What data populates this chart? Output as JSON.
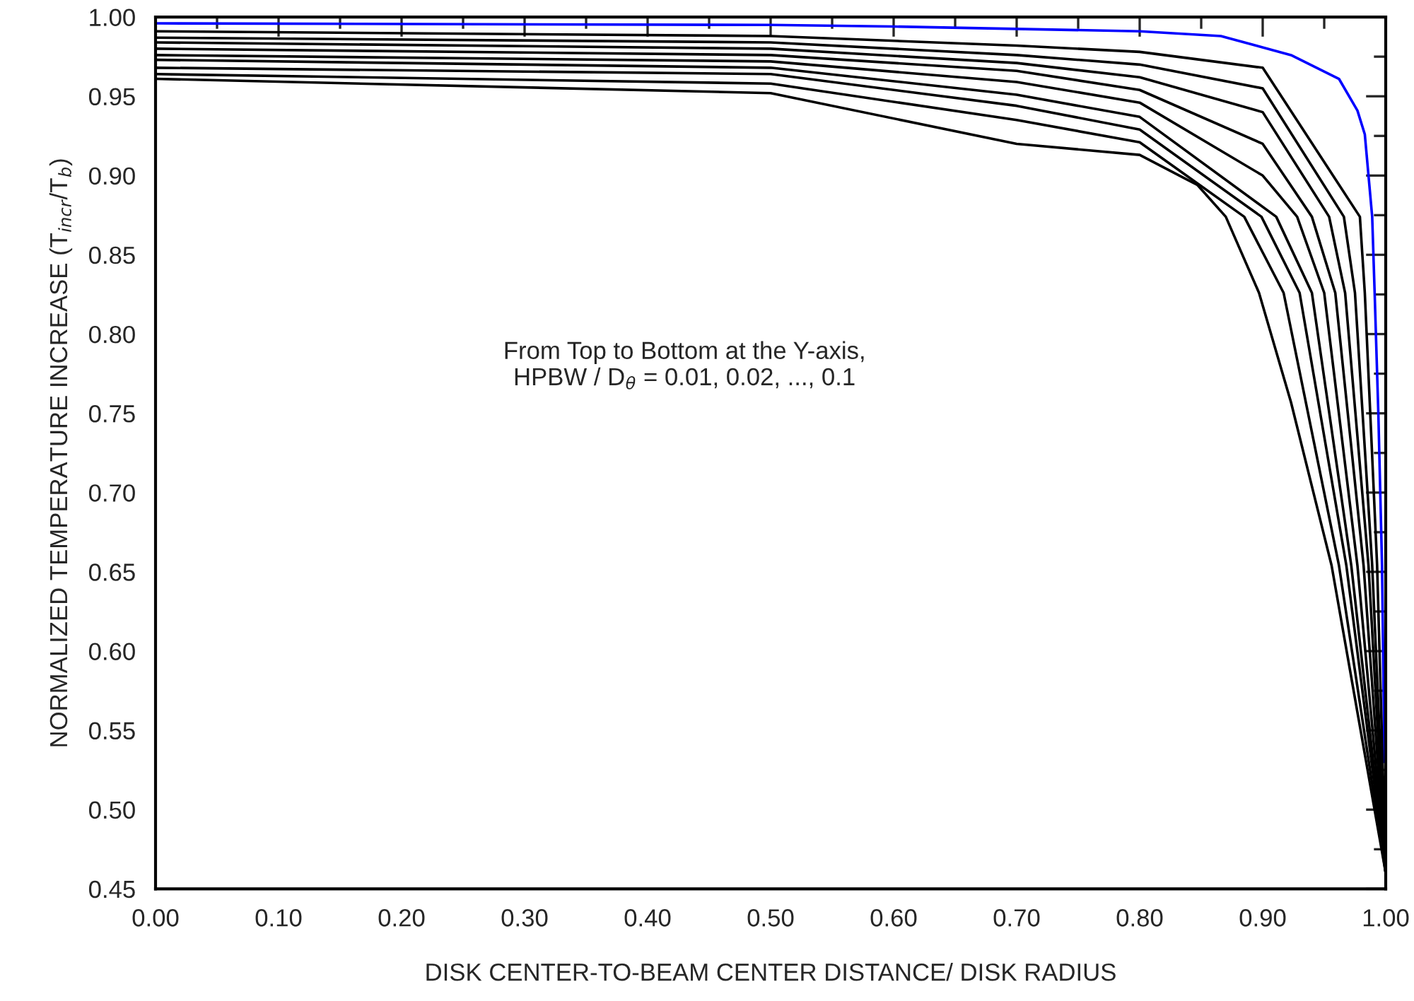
{
  "chart_data": {
    "type": "line",
    "xlabel": "DISK CENTER-TO-BEAM CENTER DISTANCE/ DISK RADIUS",
    "ylabel": "NORMALIZED TEMPERATURE INCREASE (T$_{incr}$/T$_{b}$)",
    "annotations": [
      "From Top to Bottom at the Y-axis,\nHPBW / D$_{θ}$ = 0.01, 0.02, ..., 0.1"
    ],
    "xlim": [
      0,
      1
    ],
    "ylim": [
      0.45,
      1.0
    ],
    "xticks": [
      {
        "value": 0,
        "label": "0.00"
      },
      {
        "value": 0.05,
        "label": null
      },
      {
        "value": 0.1,
        "label": "0.10"
      },
      {
        "value": 0.15,
        "label": null
      },
      {
        "value": 0.2,
        "label": "0.20"
      },
      {
        "value": 0.25,
        "label": null
      },
      {
        "value": 0.3,
        "label": "0.30"
      },
      {
        "value": 0.35,
        "label": null
      },
      {
        "value": 0.4,
        "label": "0.40"
      },
      {
        "value": 0.45,
        "label": null
      },
      {
        "value": 0.5,
        "label": "0.50"
      },
      {
        "value": 0.55,
        "label": null
      },
      {
        "value": 0.6,
        "label": "0.60"
      },
      {
        "value": 0.65,
        "label": null
      },
      {
        "value": 0.7,
        "label": "0.70"
      },
      {
        "value": 0.75,
        "label": null
      },
      {
        "value": 0.8,
        "label": "0.80"
      },
      {
        "value": 0.85,
        "label": null
      },
      {
        "value": 0.9,
        "label": "0.90"
      },
      {
        "value": 0.95,
        "label": null
      },
      {
        "value": 1.0,
        "label": "1.00"
      }
    ],
    "yticks": [
      {
        "value": 0.45,
        "label": "0.45"
      },
      {
        "value": 0.475,
        "label": null
      },
      {
        "value": 0.5,
        "label": "0.50"
      },
      {
        "value": 0.525,
        "label": null
      },
      {
        "value": 0.55,
        "label": "0.55"
      },
      {
        "value": 0.575,
        "label": null
      },
      {
        "value": 0.6,
        "label": "0.60"
      },
      {
        "value": 0.625,
        "label": null
      },
      {
        "value": 0.65,
        "label": "0.65"
      },
      {
        "value": 0.675,
        "label": null
      },
      {
        "value": 0.7,
        "label": "0.70"
      },
      {
        "value": 0.725,
        "label": null
      },
      {
        "value": 0.75,
        "label": "0.75"
      },
      {
        "value": 0.775,
        "label": null
      },
      {
        "value": 0.8,
        "label": "0.80"
      },
      {
        "value": 0.825,
        "label": null
      },
      {
        "value": 0.85,
        "label": "0.85"
      },
      {
        "value": 0.875,
        "label": null
      },
      {
        "value": 0.9,
        "label": "0.90"
      },
      {
        "value": 0.925,
        "label": null
      },
      {
        "value": 0.95,
        "label": "0.95"
      },
      {
        "value": 0.975,
        "label": null
      },
      {
        "value": 1.0,
        "label": "1.00"
      }
    ],
    "grid": false,
    "series": [
      {
        "color": "#0000ff",
        "x": [
          0,
          0.5,
          0.6,
          0.8,
          0.866,
          0.923,
          0.962,
          0.977,
          0.983,
          0.989,
          0.991,
          0.994,
          0.997,
          0.999
        ],
        "values": [
          0.996,
          0.995,
          0.994,
          0.991,
          0.988,
          0.976,
          0.961,
          0.941,
          0.926,
          0.874,
          0.826,
          0.75,
          0.654,
          0.53
        ]
      },
      {
        "color": "#000000",
        "x": [
          0,
          0.5,
          0.7,
          0.8,
          0.9,
          0.979,
          0.983,
          0.993,
          1.0
        ],
        "values": [
          0.991,
          0.988,
          0.982,
          0.978,
          0.968,
          0.874,
          0.826,
          0.654,
          0.46
        ]
      },
      {
        "color": "#000000",
        "x": [
          0,
          0.5,
          0.7,
          0.8,
          0.9,
          0.966,
          0.975,
          0.989,
          1.0
        ],
        "values": [
          0.987,
          0.984,
          0.976,
          0.97,
          0.955,
          0.874,
          0.826,
          0.654,
          0.46
        ]
      },
      {
        "color": "#000000",
        "x": [
          0,
          0.5,
          0.7,
          0.8,
          0.9,
          0.954,
          0.967,
          0.986,
          1.0
        ],
        "values": [
          0.984,
          0.98,
          0.971,
          0.962,
          0.94,
          0.874,
          0.826,
          0.654,
          0.46
        ]
      },
      {
        "color": "#000000",
        "x": [
          0,
          0.5,
          0.7,
          0.8,
          0.9,
          0.94,
          0.959,
          0.982,
          1.0
        ],
        "values": [
          0.98,
          0.976,
          0.966,
          0.954,
          0.92,
          0.874,
          0.826,
          0.654,
          0.46
        ]
      },
      {
        "color": "#000000",
        "x": [
          0,
          0.5,
          0.7,
          0.8,
          0.9,
          0.928,
          0.95,
          0.977,
          1.0
        ],
        "values": [
          0.976,
          0.972,
          0.959,
          0.946,
          0.9,
          0.874,
          0.826,
          0.654,
          0.46
        ]
      },
      {
        "color": "#000000",
        "x": [
          0,
          0.5,
          0.7,
          0.8,
          0.911,
          0.94,
          0.972,
          1.0
        ],
        "values": [
          0.973,
          0.968,
          0.951,
          0.937,
          0.874,
          0.826,
          0.654,
          0.46
        ]
      },
      {
        "color": "#000000",
        "x": [
          0,
          0.5,
          0.7,
          0.8,
          0.899,
          0.93,
          0.968,
          1.0
        ],
        "values": [
          0.968,
          0.964,
          0.944,
          0.929,
          0.874,
          0.826,
          0.654,
          0.46
        ]
      },
      {
        "color": "#000000",
        "x": [
          0,
          0.5,
          0.7,
          0.8,
          0.885,
          0.917,
          0.962,
          1.0
        ],
        "values": [
          0.964,
          0.958,
          0.935,
          0.921,
          0.874,
          0.826,
          0.654,
          0.46
        ]
      },
      {
        "color": "#000000",
        "x": [
          0,
          0.5,
          0.7,
          0.8,
          0.847,
          0.87,
          0.897,
          0.923,
          0.956,
          1.0
        ],
        "values": [
          0.961,
          0.952,
          0.92,
          0.913,
          0.894,
          0.874,
          0.826,
          0.757,
          0.654,
          0.46
        ]
      }
    ]
  }
}
